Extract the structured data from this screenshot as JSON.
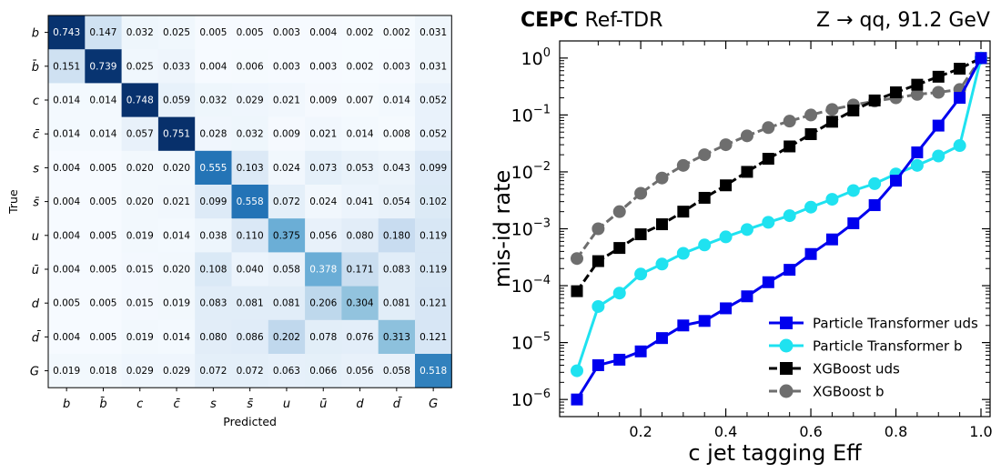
{
  "chart_data": [
    {
      "type": "heatmap",
      "title": "",
      "xlabel": "Predicted",
      "ylabel": "True",
      "rows": [
        "b",
        "b̄",
        "c",
        "c̄",
        "s",
        "s̄",
        "u",
        "ū",
        "d",
        "d̄",
        "G"
      ],
      "cols": [
        "b",
        "b̄",
        "c",
        "c̄",
        "s",
        "s̄",
        "u",
        "ū",
        "d",
        "d̄",
        "G"
      ],
      "values": [
        [
          0.743,
          0.147,
          0.032,
          0.025,
          0.005,
          0.005,
          0.003,
          0.004,
          0.002,
          0.002,
          0.031
        ],
        [
          0.151,
          0.739,
          0.025,
          0.033,
          0.004,
          0.006,
          0.003,
          0.003,
          0.002,
          0.003,
          0.031
        ],
        [
          0.014,
          0.014,
          0.748,
          0.059,
          0.032,
          0.029,
          0.021,
          0.009,
          0.007,
          0.014,
          0.052
        ],
        [
          0.014,
          0.014,
          0.057,
          0.751,
          0.028,
          0.032,
          0.009,
          0.021,
          0.014,
          0.008,
          0.052
        ],
        [
          0.004,
          0.005,
          0.02,
          0.02,
          0.555,
          0.103,
          0.024,
          0.073,
          0.053,
          0.043,
          0.099
        ],
        [
          0.004,
          0.005,
          0.02,
          0.021,
          0.099,
          0.558,
          0.072,
          0.024,
          0.041,
          0.054,
          0.102
        ],
        [
          0.004,
          0.005,
          0.019,
          0.014,
          0.038,
          0.11,
          0.375,
          0.056,
          0.08,
          0.18,
          0.119
        ],
        [
          0.004,
          0.005,
          0.015,
          0.02,
          0.108,
          0.04,
          0.058,
          0.378,
          0.171,
          0.083,
          0.119
        ],
        [
          0.005,
          0.005,
          0.015,
          0.019,
          0.083,
          0.081,
          0.081,
          0.206,
          0.304,
          0.081,
          0.121
        ],
        [
          0.004,
          0.005,
          0.019,
          0.014,
          0.08,
          0.086,
          0.202,
          0.078,
          0.076,
          0.313,
          0.121
        ],
        [
          0.019,
          0.018,
          0.029,
          0.029,
          0.072,
          0.072,
          0.063,
          0.066,
          0.056,
          0.058,
          0.518
        ]
      ],
      "colormap": "Blues",
      "value_range": [
        0,
        0.751
      ]
    },
    {
      "type": "line",
      "title_bold": "CEPC",
      "title": "Ref-TDR",
      "annotation": "Z → qq, 91.2 GeV",
      "xlabel": "c jet tagging Eff",
      "ylabel": "mis-id rate",
      "yscale": "log",
      "xlim": [
        0,
        1.0
      ],
      "ylim": [
        5e-07,
        2
      ],
      "xticks": [
        0.2,
        0.4,
        0.6,
        0.8,
        1.0
      ],
      "xtick_labels": [
        "0.2",
        "0.4",
        "0.6",
        "0.8",
        "1.0"
      ],
      "yticks": [
        1e-06,
        1e-05,
        0.0001,
        0.001,
        0.01,
        0.1,
        1
      ],
      "ytick_labels": [
        {
          "base": "10",
          "exp": "−6"
        },
        {
          "base": "10",
          "exp": "−5"
        },
        {
          "base": "10",
          "exp": "−4"
        },
        {
          "base": "10",
          "exp": "−3"
        },
        {
          "base": "10",
          "exp": "−2"
        },
        {
          "base": "10",
          "exp": "−1"
        },
        {
          "base": "10",
          "exp": "0"
        }
      ],
      "legend_position": "lower-right",
      "x": [
        0.05,
        0.1,
        0.15,
        0.2,
        0.25,
        0.3,
        0.35,
        0.4,
        0.45,
        0.5,
        0.55,
        0.6,
        0.65,
        0.7,
        0.75,
        0.8,
        0.85,
        0.9,
        0.95,
        1.0
      ],
      "series": [
        {
          "name": "Particle Transformer uds",
          "color": "#0000ee",
          "marker": "square",
          "dashed": false,
          "values": [
            1e-06,
            4e-06,
            5e-06,
            7e-06,
            1.2e-05,
            2e-05,
            2.4e-05,
            4e-05,
            6.5e-05,
            0.000115,
            0.00019,
            0.00036,
            0.00065,
            0.00125,
            0.0026,
            0.007,
            0.022,
            0.065,
            0.2,
            1.0
          ]
        },
        {
          "name": "Particle Transformer b",
          "color": "#1fe2f0",
          "marker": "circle",
          "dashed": false,
          "values": [
            3.2e-06,
            4.3e-05,
            7.4e-05,
            0.00016,
            0.00024,
            0.00037,
            0.00052,
            0.00072,
            0.00097,
            0.0013,
            0.0017,
            0.0024,
            0.0033,
            0.0047,
            0.0062,
            0.0092,
            0.013,
            0.019,
            0.029,
            1.0
          ]
        },
        {
          "name": "XGBoost uds",
          "color": "#000000",
          "marker": "square",
          "dashed": true,
          "values": [
            8e-05,
            0.00027,
            0.00046,
            0.0008,
            0.0012,
            0.002,
            0.0035,
            0.0058,
            0.01,
            0.017,
            0.028,
            0.046,
            0.076,
            0.12,
            0.18,
            0.25,
            0.34,
            0.47,
            0.65,
            1.0
          ]
        },
        {
          "name": "XGBoost b",
          "color": "#6e6e6e",
          "marker": "circle",
          "dashed": true,
          "values": [
            0.0003,
            0.001,
            0.002,
            0.0042,
            0.0078,
            0.013,
            0.02,
            0.03,
            0.043,
            0.06,
            0.078,
            0.1,
            0.125,
            0.15,
            0.175,
            0.2,
            0.23,
            0.25,
            0.28,
            1.0
          ]
        }
      ]
    }
  ]
}
